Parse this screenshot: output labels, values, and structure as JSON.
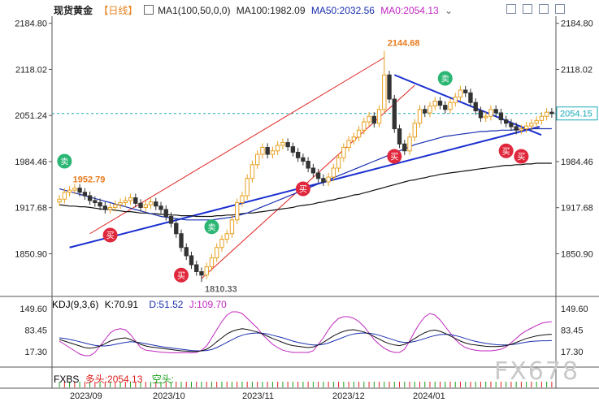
{
  "header": {
    "symbol": "现货黄金",
    "period": "【日线】",
    "ma1_label": "MA1(100,50,0,0)",
    "ma100_label": "MA100:1982.09",
    "ma50_label": "MA50:2032.56",
    "ma0_label": "MA0:2054.13"
  },
  "kdj": {
    "label": "KDJ(9,3,6)",
    "k_label": "K:70.91",
    "d_label": "D:51.52",
    "j_label": "J:109.70",
    "yticks": [
      "149.60",
      "83.45",
      "17.30"
    ]
  },
  "fxbs": {
    "label": "FXBS",
    "long_label": "多头:2054.13",
    "short_label": "空头:"
  },
  "xaxis": [
    "2023/09",
    "2023/10",
    "2023/11",
    "2023/12",
    "2024/01"
  ],
  "watermark": "FX678",
  "chart_data": {
    "type": "candlestick",
    "yticks": [
      2184.8,
      2118.02,
      2051.24,
      1984.46,
      1917.68,
      1850.9
    ],
    "ylim": [
      1795,
      2195
    ],
    "current_price": "2054.15",
    "annotations": {
      "high_label": "2144.68",
      "low_label": "1810.33",
      "start_label": "1952.79"
    },
    "signals": [
      {
        "type": "sell",
        "label": "卖",
        "date": "2023-08-31"
      },
      {
        "type": "buy",
        "label": "买",
        "date": "2023-09-14"
      },
      {
        "type": "buy",
        "label": "买",
        "date": "2023-10-06"
      },
      {
        "type": "sell",
        "label": "卖",
        "date": "2023-10-16"
      },
      {
        "type": "buy",
        "label": "买",
        "date": "2023-11-13"
      },
      {
        "type": "buy",
        "label": "买",
        "date": "2023-12-13"
      },
      {
        "type": "sell",
        "label": "卖",
        "date": "2023-12-28"
      },
      {
        "type": "buy",
        "label": "买",
        "date": "2024-01-17"
      },
      {
        "type": "buy",
        "label": "买",
        "date": "2024-01-22"
      }
    ],
    "close": [
      1930,
      1940,
      1943,
      1946,
      1940,
      1935,
      1928,
      1925,
      1920,
      1915,
      1918,
      1922,
      1925,
      1928,
      1932,
      1924,
      1918,
      1922,
      1926,
      1920,
      1915,
      1905,
      1895,
      1880,
      1860,
      1848,
      1835,
      1825,
      1820,
      1832,
      1845,
      1860,
      1872,
      1880,
      1900,
      1925,
      1935,
      1960,
      1980,
      1995,
      2005,
      1995,
      2000,
      2008,
      2012,
      2006,
      1998,
      1990,
      1985,
      1975,
      1968,
      1960,
      1955,
      1962,
      1975,
      1990,
      2005,
      2015,
      2020,
      2030,
      2042,
      2050,
      2040,
      2060,
      2110,
      2075,
      2032,
      2010,
      2000,
      2020,
      2040,
      2060,
      2055,
      2065,
      2072,
      2066,
      2060,
      2070,
      2078,
      2088,
      2084,
      2070,
      2058,
      2048,
      2050,
      2060,
      2055,
      2045,
      2040,
      2035,
      2030,
      2032,
      2036,
      2040,
      2044,
      2050,
      2056,
      2054
    ],
    "ma100": [
      1922,
      1921,
      1920,
      1920,
      1919,
      1919,
      1918,
      1917,
      1916,
      1915,
      1915,
      1914,
      1913,
      1912,
      1912,
      1911,
      1910,
      1910,
      1909,
      1909,
      1908,
      1908,
      1907,
      1907,
      1906,
      1906,
      1906,
      1905,
      1905,
      1905,
      1905,
      1906,
      1906,
      1907,
      1907,
      1908,
      1909,
      1910,
      1910,
      1911,
      1912,
      1913,
      1914,
      1915,
      1916,
      1917,
      1918,
      1920,
      1921,
      1922,
      1923,
      1925,
      1926,
      1928,
      1929,
      1931,
      1932,
      1934,
      1936,
      1937,
      1939,
      1941,
      1943,
      1945,
      1947,
      1949,
      1951,
      1953,
      1955,
      1957,
      1958,
      1960,
      1961,
      1963,
      1964,
      1966,
      1967,
      1968,
      1969,
      1970,
      1971,
      1972,
      1973,
      1974,
      1975,
      1976,
      1977,
      1978,
      1979,
      1979,
      1980,
      1980,
      1981,
      1981,
      1982,
      1982,
      1982,
      1982
    ],
    "ma50": [
      1945,
      1943,
      1941,
      1939,
      1937,
      1935,
      1933,
      1931,
      1929,
      1927,
      1925,
      1923,
      1921,
      1919,
      1917,
      1915,
      1913,
      1911,
      1909,
      1907,
      1905,
      1904,
      1903,
      1902,
      1901,
      1900,
      1900,
      1900,
      1900,
      1900,
      1900,
      1901,
      1902,
      1903,
      1904,
      1906,
      1908,
      1910,
      1913,
      1916,
      1919,
      1922,
      1925,
      1928,
      1931,
      1934,
      1937,
      1940,
      1943,
      1946,
      1949,
      1952,
      1955,
      1958,
      1961,
      1964,
      1967,
      1970,
      1973,
      1976,
      1979,
      1982,
      1985,
      1988,
      1991,
      1994,
      1997,
      2000,
      2003,
      2006,
      2009,
      2011,
      2013,
      2015,
      2017,
      2019,
      2021,
      2022,
      2023,
      2024,
      2025,
      2026,
      2027,
      2028,
      2028,
      2029,
      2029,
      2030,
      2030,
      2030,
      2031,
      2031,
      2031,
      2032,
      2032,
      2032,
      2032,
      2032
    ],
    "kdj_k": [
      55,
      50,
      45,
      40,
      35,
      30,
      28,
      30,
      35,
      42,
      50,
      55,
      58,
      60,
      55,
      48,
      40,
      35,
      32,
      30,
      28,
      26,
      24,
      22,
      20,
      19,
      18,
      18,
      20,
      25,
      35,
      48,
      60,
      72,
      80,
      85,
      88,
      86,
      82,
      78,
      72,
      65,
      58,
      52,
      46,
      40,
      36,
      34,
      32,
      30,
      32,
      38,
      46,
      56,
      66,
      74,
      80,
      84,
      85,
      82,
      78,
      72,
      64,
      56,
      48,
      42,
      38,
      36,
      40,
      48,
      58,
      68,
      76,
      82,
      84,
      80,
      74,
      66,
      58,
      50,
      44,
      40,
      38,
      36,
      34,
      33,
      33,
      34,
      36,
      40,
      46,
      52,
      58,
      62,
      66,
      68,
      70,
      70.91
    ],
    "kdj_d": [
      60,
      58,
      55,
      52,
      48,
      44,
      40,
      37,
      35,
      35,
      37,
      40,
      43,
      46,
      48,
      47,
      45,
      42,
      39,
      36,
      33,
      31,
      29,
      27,
      25,
      23,
      21,
      20,
      20,
      21,
      24,
      30,
      38,
      46,
      54,
      62,
      68,
      72,
      74,
      75,
      74,
      72,
      68,
      64,
      60,
      55,
      50,
      46,
      43,
      40,
      38,
      38,
      40,
      44,
      50,
      56,
      62,
      68,
      72,
      74,
      75,
      74,
      72,
      68,
      63,
      58,
      53,
      48,
      46,
      46,
      49,
      53,
      58,
      63,
      67,
      70,
      71,
      70,
      67,
      63,
      58,
      53,
      49,
      46,
      43,
      41,
      39,
      38,
      38,
      39,
      41,
      44,
      47,
      49,
      50,
      51,
      51,
      51.52
    ],
    "kdj_j": [
      50,
      40,
      30,
      20,
      10,
      5,
      5,
      15,
      35,
      55,
      75,
      85,
      88,
      85,
      70,
      50,
      30,
      22,
      20,
      18,
      16,
      15,
      14,
      14,
      14,
      14,
      14,
      15,
      22,
      35,
      60,
      85,
      110,
      130,
      140,
      140,
      135,
      120,
      105,
      90,
      70,
      55,
      40,
      30,
      22,
      18,
      15,
      15,
      15,
      15,
      20,
      40,
      60,
      85,
      105,
      120,
      125,
      125,
      120,
      110,
      95,
      75,
      55,
      40,
      28,
      20,
      15,
      15,
      25,
      50,
      80,
      105,
      125,
      135,
      130,
      115,
      95,
      75,
      55,
      40,
      30,
      25,
      22,
      20,
      20,
      20,
      22,
      25,
      32,
      45,
      58,
      72,
      82,
      90,
      98,
      105,
      108,
      109.7
    ]
  }
}
